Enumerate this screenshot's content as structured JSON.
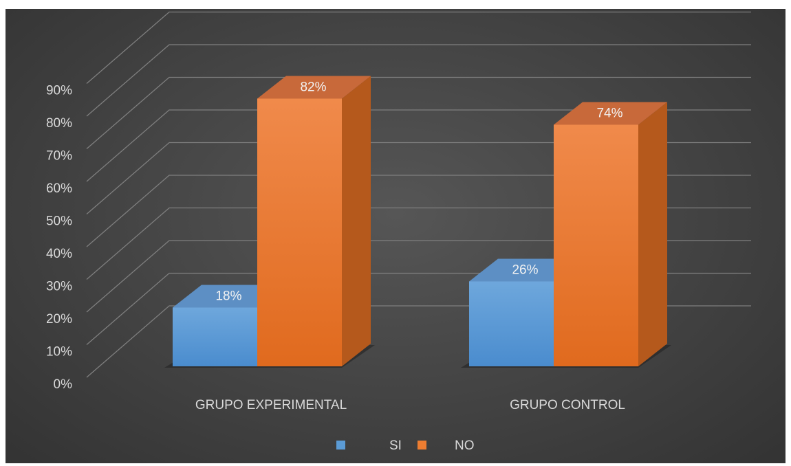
{
  "chart_data": {
    "type": "bar",
    "style": "3d-clustered-column",
    "title": "",
    "xlabel": "",
    "ylabel": "",
    "categories": [
      "GRUPO EXPERIMENTAL",
      "GRUPO CONTROL"
    ],
    "series": [
      {
        "name": "SI",
        "values": [
          18,
          26
        ],
        "labels": [
          "18%",
          "26%"
        ],
        "color": "#5b9bd5"
      },
      {
        "name": "NO",
        "values": [
          82,
          74
        ],
        "labels": [
          "82%",
          "74%"
        ],
        "color": "#ed7d31"
      }
    ],
    "ylim": [
      0,
      90
    ],
    "yticks": [
      "0%",
      "10%",
      "20%",
      "30%",
      "40%",
      "50%",
      "60%",
      "70%",
      "80%",
      "90%"
    ],
    "grid": true,
    "legend": "bottom",
    "background": "#474747"
  }
}
